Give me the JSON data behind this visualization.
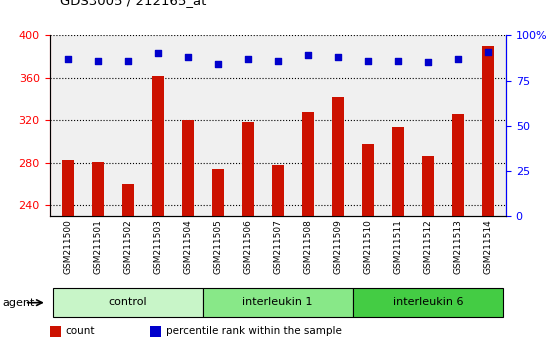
{
  "title": "GDS3005 / 212165_at",
  "samples": [
    "GSM211500",
    "GSM211501",
    "GSM211502",
    "GSM211503",
    "GSM211504",
    "GSM211505",
    "GSM211506",
    "GSM211507",
    "GSM211508",
    "GSM211509",
    "GSM211510",
    "GSM211511",
    "GSM211512",
    "GSM211513",
    "GSM211514"
  ],
  "counts": [
    283,
    281,
    260,
    362,
    320,
    274,
    318,
    278,
    328,
    342,
    298,
    314,
    286,
    326,
    390
  ],
  "percentile_ranks": [
    87,
    86,
    86,
    90,
    88,
    84,
    87,
    86,
    89,
    88,
    86,
    86,
    85,
    87,
    91
  ],
  "groups": [
    {
      "label": "control",
      "start": 0,
      "end": 5,
      "color": "#c8f5c8"
    },
    {
      "label": "interleukin 1",
      "start": 5,
      "end": 10,
      "color": "#88e888"
    },
    {
      "label": "interleukin 6",
      "start": 10,
      "end": 15,
      "color": "#44cc44"
    }
  ],
  "ylim_left": [
    230,
    400
  ],
  "ylim_right": [
    0,
    100
  ],
  "yticks_left": [
    240,
    280,
    320,
    360,
    400
  ],
  "yticks_right": [
    0,
    25,
    50,
    75,
    100
  ],
  "bar_color": "#cc1100",
  "dot_color": "#0000cc",
  "bar_bottom": 230,
  "plot_bg": "#f0f0f0",
  "agent_label": "agent",
  "legend_items": [
    {
      "label": "count",
      "color": "#cc1100"
    },
    {
      "label": "percentile rank within the sample",
      "color": "#0000cc"
    }
  ]
}
